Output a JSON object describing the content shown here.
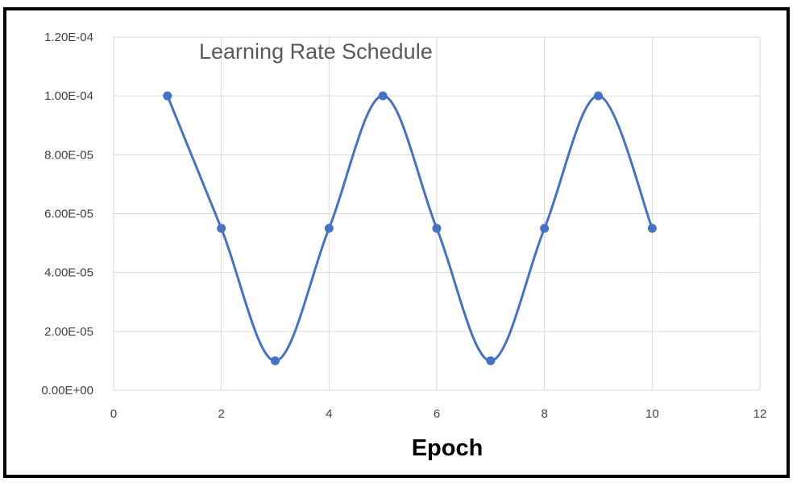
{
  "chart_data": {
    "type": "line",
    "title": "Learning Rate Schedule",
    "xlabel": "Epoch",
    "ylabel": "",
    "xlim": [
      0,
      12
    ],
    "ylim": [
      0,
      0.00012
    ],
    "x_ticks": [
      "0",
      "2",
      "4",
      "6",
      "8",
      "10",
      "12"
    ],
    "y_ticks": [
      "0.00E+00",
      "2.00E-05",
      "4.00E-05",
      "6.00E-05",
      "8.00E-05",
      "1.00E-04",
      "1.20E-04"
    ],
    "grid": true,
    "smooth": true,
    "series": [
      {
        "x": [
          1,
          2,
          3,
          4,
          5,
          6,
          7,
          8,
          9,
          10
        ],
        "values": [
          0.0001,
          5.5e-05,
          1e-05,
          5.5e-05,
          0.0001,
          5.5e-05,
          1e-05,
          5.5e-05,
          0.0001,
          5.5e-05
        ],
        "color": "#4472c4"
      }
    ]
  }
}
